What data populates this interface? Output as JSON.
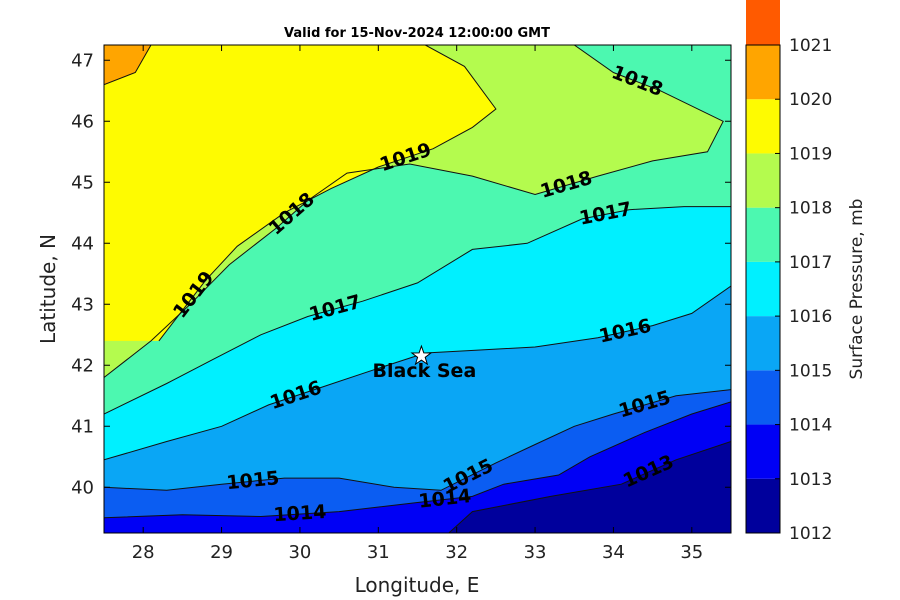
{
  "chart_data": {
    "type": "contour",
    "title": "Valid for 15-Nov-2024 12:00:00 GMT",
    "xlabel": "Longitude, E",
    "ylabel": "Latitude, N",
    "xlim": [
      27.5,
      35.5
    ],
    "ylim": [
      39.25,
      47.25
    ],
    "x_ticks": [
      28,
      29,
      30,
      31,
      32,
      33,
      34,
      35
    ],
    "y_ticks": [
      40,
      41,
      42,
      43,
      44,
      45,
      46,
      47
    ],
    "colorbar": {
      "label": "Surface Pressure, mb",
      "range": [
        1012,
        1021
      ],
      "ticks": [
        1012,
        1013,
        1014,
        1015,
        1016,
        1017,
        1018,
        1019,
        1020,
        1021
      ],
      "band_colors": [
        "#00009c",
        "#0000f5",
        "#0b5df2",
        "#0aa6f5",
        "#00f0ff",
        "#4cf8b0",
        "#b4fb4e",
        "#fefb01",
        "#ffa500",
        "#ff5a00"
      ]
    },
    "levels": [
      {
        "level": 1013,
        "label": "1013",
        "points": [
          [
            31.9,
            39.25
          ],
          [
            32.2,
            39.6
          ],
          [
            33.2,
            39.85
          ],
          [
            34.1,
            40.05
          ],
          [
            34.8,
            40.45
          ],
          [
            35.5,
            40.75
          ]
        ]
      },
      {
        "level": 1014,
        "label": "1014",
        "points": [
          [
            27.5,
            39.5
          ],
          [
            28.5,
            39.55
          ],
          [
            29.5,
            39.52
          ],
          [
            30.5,
            39.6
          ],
          [
            31.5,
            39.75
          ],
          [
            32.2,
            39.85
          ],
          [
            32.6,
            40.05
          ],
          [
            33.3,
            40.2
          ],
          [
            33.7,
            40.5
          ],
          [
            34.4,
            40.9
          ],
          [
            35.0,
            41.2
          ],
          [
            35.5,
            41.4
          ]
        ]
      },
      {
        "level": 1015,
        "label": "1015",
        "points": [
          [
            27.5,
            40.0
          ],
          [
            28.3,
            39.95
          ],
          [
            29.0,
            40.05
          ],
          [
            29.8,
            40.15
          ],
          [
            30.5,
            40.15
          ],
          [
            31.2,
            40.0
          ],
          [
            31.8,
            39.95
          ],
          [
            32.5,
            40.4
          ],
          [
            33.0,
            40.7
          ],
          [
            33.5,
            41.0
          ],
          [
            34.0,
            41.2
          ],
          [
            34.8,
            41.5
          ],
          [
            35.5,
            41.6
          ]
        ]
      },
      {
        "level": 1016,
        "label": "1016",
        "points": [
          [
            27.5,
            40.45
          ],
          [
            28.3,
            40.75
          ],
          [
            29.0,
            41.0
          ],
          [
            29.6,
            41.35
          ],
          [
            30.3,
            41.65
          ],
          [
            31.0,
            41.95
          ],
          [
            31.6,
            42.2
          ],
          [
            32.3,
            42.25
          ],
          [
            33.0,
            42.3
          ],
          [
            33.8,
            42.45
          ],
          [
            34.5,
            42.65
          ],
          [
            35.0,
            42.85
          ],
          [
            35.5,
            43.3
          ]
        ]
      },
      {
        "level": 1017,
        "label": "1017",
        "points": [
          [
            27.5,
            41.2
          ],
          [
            28.3,
            41.7
          ],
          [
            28.9,
            42.1
          ],
          [
            29.5,
            42.5
          ],
          [
            30.1,
            42.8
          ],
          [
            30.8,
            43.05
          ],
          [
            31.5,
            43.35
          ],
          [
            32.2,
            43.9
          ],
          [
            32.9,
            44.0
          ],
          [
            33.6,
            44.4
          ],
          [
            34.2,
            44.55
          ],
          [
            34.9,
            44.6
          ],
          [
            35.5,
            44.6
          ]
        ]
      },
      {
        "level": 1018,
        "label": "1018",
        "points": [
          [
            27.5,
            41.8
          ],
          [
            28.1,
            42.4
          ],
          [
            28.6,
            43.0
          ],
          [
            29.1,
            43.65
          ],
          [
            29.7,
            44.25
          ],
          [
            30.1,
            44.7
          ],
          [
            30.6,
            45.15
          ],
          [
            31.4,
            45.3
          ],
          [
            32.2,
            45.1
          ],
          [
            33.0,
            44.8
          ],
          [
            33.8,
            45.1
          ],
          [
            34.5,
            45.35
          ],
          [
            35.2,
            45.5
          ],
          [
            35.4,
            46.0
          ],
          [
            34.6,
            46.5
          ],
          [
            34.0,
            46.8
          ],
          [
            33.5,
            47.25
          ]
        ]
      },
      {
        "level": 1019,
        "label": "1019",
        "points": [
          [
            28.2,
            42.4
          ],
          [
            28.5,
            42.9
          ],
          [
            28.8,
            43.4
          ],
          [
            29.2,
            43.95
          ],
          [
            29.8,
            44.5
          ],
          [
            30.4,
            44.9
          ],
          [
            31.0,
            45.25
          ],
          [
            31.7,
            45.55
          ],
          [
            32.2,
            45.9
          ],
          [
            32.5,
            46.2
          ],
          [
            32.1,
            46.9
          ],
          [
            31.6,
            47.25
          ]
        ]
      },
      {
        "level": 1020,
        "label": "",
        "points": [
          [
            27.5,
            46.6
          ],
          [
            27.9,
            46.8
          ],
          [
            28.1,
            47.25
          ]
        ]
      }
    ],
    "annotations": [
      {
        "text": "Black Sea",
        "lon": 31.55,
        "lat": 42.15,
        "marker": "star"
      }
    ]
  }
}
